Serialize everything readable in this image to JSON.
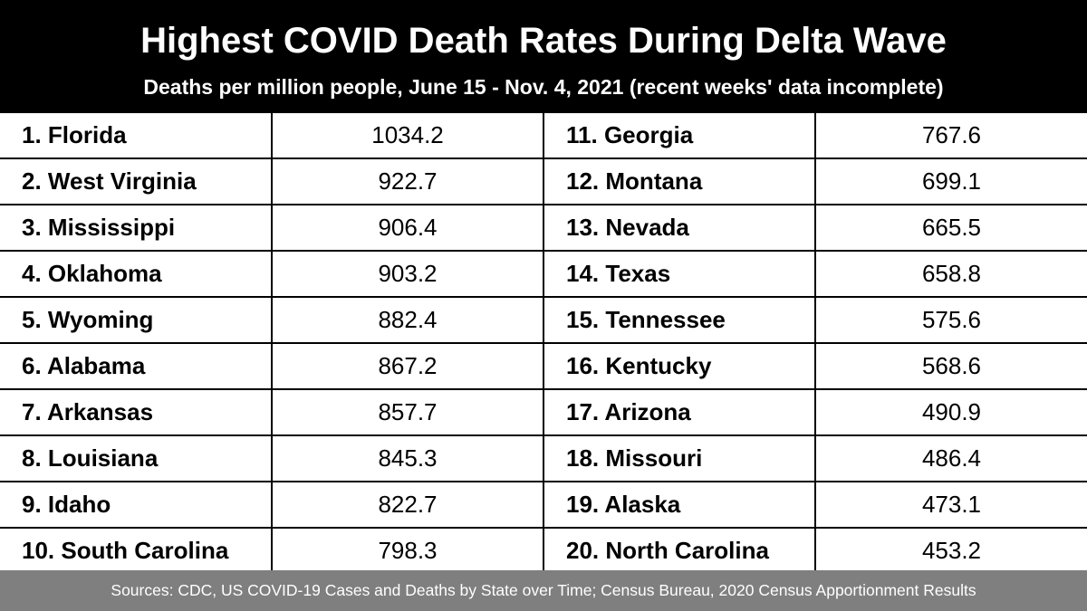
{
  "chart_data": {
    "type": "table",
    "title": "Highest COVID Death Rates During Delta Wave",
    "subtitle": "Deaths per million people, June 15 - Nov. 4, 2021 (recent weeks' data incomplete)",
    "rows": [
      {
        "rank": "1.",
        "state": "Florida",
        "value": "1034.2"
      },
      {
        "rank": "2.",
        "state": "West Virginia",
        "value": "922.7"
      },
      {
        "rank": "3.",
        "state": "Mississippi",
        "value": "906.4"
      },
      {
        "rank": "4.",
        "state": "Oklahoma",
        "value": "903.2"
      },
      {
        "rank": "5.",
        "state": "Wyoming",
        "value": "882.4"
      },
      {
        "rank": "6.",
        "state": "Alabama",
        "value": "867.2"
      },
      {
        "rank": "7.",
        "state": "Arkansas",
        "value": "857.7"
      },
      {
        "rank": "8.",
        "state": "Louisiana",
        "value": "845.3"
      },
      {
        "rank": "9.",
        "state": "Idaho",
        "value": "822.7"
      },
      {
        "rank": "10.",
        "state": "South Carolina",
        "value": "798.3"
      },
      {
        "rank": "11.",
        "state": "Georgia",
        "value": "767.6"
      },
      {
        "rank": "12.",
        "state": "Montana",
        "value": "699.1"
      },
      {
        "rank": "13.",
        "state": "Nevada",
        "value": "665.5"
      },
      {
        "rank": "14.",
        "state": "Texas",
        "value": "658.8"
      },
      {
        "rank": "15.",
        "state": "Tennessee",
        "value": "575.6"
      },
      {
        "rank": "16.",
        "state": "Kentucky",
        "value": "568.6"
      },
      {
        "rank": "17.",
        "state": "Arizona",
        "value": "490.9"
      },
      {
        "rank": "18.",
        "state": "Missouri",
        "value": "486.4"
      },
      {
        "rank": "19.",
        "state": "Alaska",
        "value": "473.1"
      },
      {
        "rank": "20.",
        "state": "North Carolina",
        "value": "453.2"
      }
    ],
    "source": "Sources: CDC, US COVID-19 Cases and Deaths by State over Time; Census Bureau, 2020 Census Apportionment Results"
  }
}
